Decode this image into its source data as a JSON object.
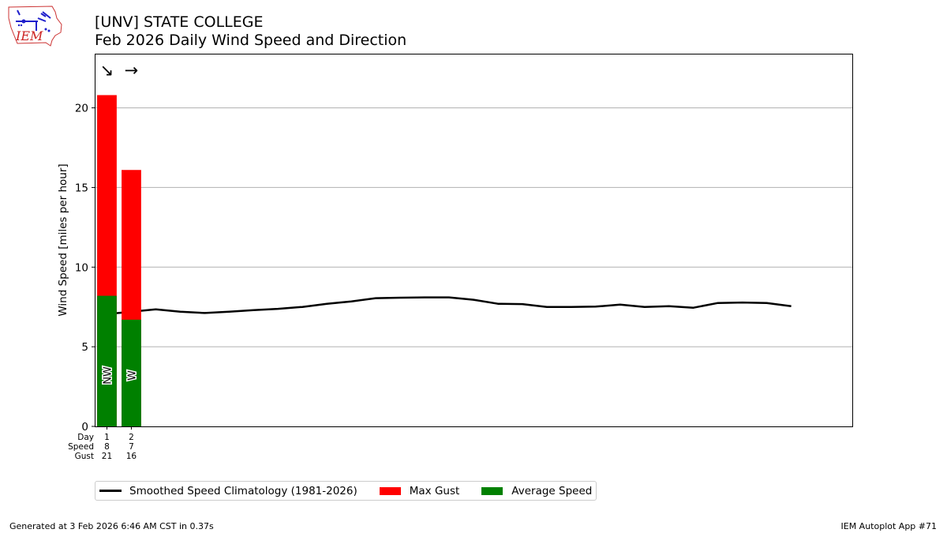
{
  "header": {
    "title_line1": "[UNV] STATE COLLEGE",
    "title_line2": "Feb 2026 Daily Wind Speed and Direction",
    "logo_text": "IEM"
  },
  "footer": {
    "generated": "Generated at 3 Feb 2026 6:46 AM CST in 0.37s",
    "app": "IEM Autoplot App #71"
  },
  "chart_data": {
    "type": "bar",
    "title": "[UNV] STATE COLLEGE\nFeb 2026 Daily Wind Speed and Direction",
    "ylabel": "Wind Speed [miles per hour]",
    "xlabel": "",
    "ylim": [
      0,
      23.4
    ],
    "xlim": [
      0.5,
      31.5
    ],
    "yticks": [
      0,
      5,
      10,
      15,
      20
    ],
    "grid": "horizontal",
    "row_labels": [
      "Day",
      "Speed",
      "Gust"
    ],
    "days": [
      1,
      2
    ],
    "speed_labels": [
      "8",
      "7"
    ],
    "gust_labels": [
      "21",
      "16"
    ],
    "series": [
      {
        "name": "Max Gust",
        "color": "#ff0000",
        "values": [
          20.8,
          16.1
        ]
      },
      {
        "name": "Average Speed",
        "color": "#008000",
        "values": [
          8.2,
          6.7
        ]
      }
    ],
    "direction_labels": [
      "NW",
      "W"
    ],
    "direction_arrows": [
      "↘",
      "→"
    ],
    "climatology": {
      "name": "Smoothed Speed Climatology (1981-2026)",
      "color": "#000000",
      "x": [
        1,
        2,
        3,
        4,
        5,
        6,
        7,
        8,
        9,
        10,
        11,
        12,
        13,
        14,
        15,
        16,
        17,
        18,
        19,
        20,
        21,
        22,
        23,
        24,
        25,
        26,
        27,
        28,
        29
      ],
      "y": [
        7.05,
        7.2,
        7.35,
        7.2,
        7.12,
        7.2,
        7.3,
        7.38,
        7.5,
        7.7,
        7.85,
        8.05,
        8.08,
        8.1,
        8.1,
        7.95,
        7.7,
        7.68,
        7.5,
        7.5,
        7.52,
        7.65,
        7.5,
        7.55,
        7.45,
        7.75,
        7.78,
        7.75,
        7.55
      ]
    },
    "legend_position": "bottom-left"
  }
}
